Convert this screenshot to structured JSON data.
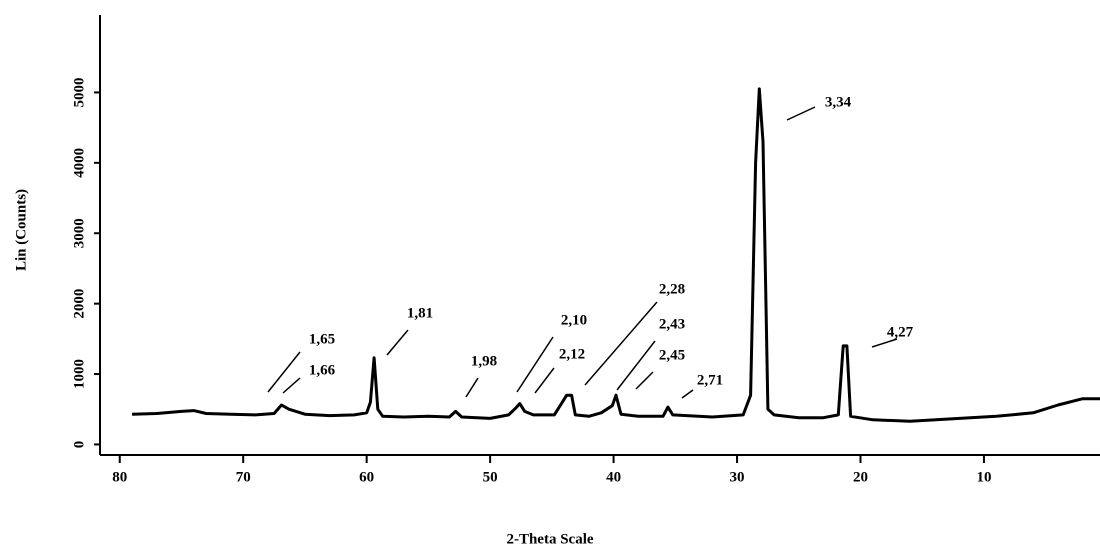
{
  "chart_data": {
    "type": "line",
    "xlabel": "2-Theta Scale",
    "ylabel": "Lin (Counts)",
    "xlim": [
      81.6,
      0.6
    ],
    "ylim": [
      -150,
      6100
    ],
    "xticks": [
      80,
      70,
      60,
      50,
      40,
      30,
      20,
      10
    ],
    "yticks": [
      0,
      1000,
      2000,
      3000,
      4000,
      5000
    ],
    "series": [
      {
        "color": "#000000",
        "x": [
          79,
          77,
          75,
          74,
          73,
          71,
          69,
          67.5,
          66.9,
          66.3,
          65,
          63,
          61,
          60,
          59.7,
          59.4,
          59.1,
          58.7,
          57,
          55,
          53.3,
          52.8,
          52.3,
          50,
          48.5,
          47.9,
          47.6,
          47.2,
          46.5,
          44.8,
          43.8,
          43.4,
          43.1,
          42,
          41,
          40.1,
          39.8,
          39.4,
          38,
          36,
          35.6,
          35.2,
          32,
          29.5,
          28.9,
          28.5,
          28.2,
          27.9,
          27.5,
          27,
          25,
          23,
          21.8,
          21.4,
          21.1,
          20.8,
          19,
          16,
          13,
          9,
          6,
          4,
          2,
          0.6
        ],
        "values": [
          430,
          440,
          470,
          480,
          440,
          430,
          420,
          440,
          560,
          500,
          430,
          410,
          420,
          450,
          600,
          1230,
          500,
          400,
          390,
          400,
          390,
          470,
          390,
          370,
          420,
          520,
          580,
          470,
          420,
          420,
          700,
          700,
          420,
          400,
          450,
          550,
          700,
          430,
          400,
          400,
          530,
          420,
          390,
          420,
          700,
          4000,
          5050,
          4300,
          500,
          420,
          380,
          380,
          420,
          1400,
          1400,
          400,
          350,
          330,
          360,
          400,
          450,
          560,
          650,
          650
        ]
      }
    ],
    "annotations": [
      "1,65",
      "1,66",
      "1,81",
      "1,98",
      "2,10",
      "2,12",
      "2,28",
      "2,43",
      "2,45",
      "2,71",
      "3,34",
      "4,27"
    ]
  }
}
